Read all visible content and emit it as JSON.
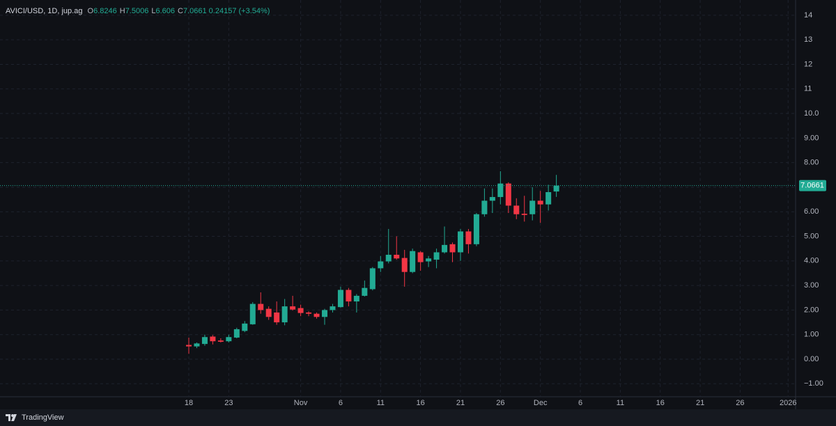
{
  "chart_data": {
    "type": "candlestick",
    "header": {
      "symbol": "AVICI/USD, 1D, jup.ag",
      "fields": [
        {
          "key": "O",
          "value": 6.8246
        },
        {
          "key": "H",
          "value": 7.5006
        },
        {
          "key": "L",
          "value": 6.606
        },
        {
          "key": "C",
          "value": 7.0661
        }
      ],
      "change": 0.24157,
      "change_pct": "(+3.54%)"
    },
    "categories": [
      "18",
      null,
      null,
      null,
      null,
      "23",
      null,
      null,
      null,
      null,
      null,
      null,
      null,
      null,
      "Nov",
      null,
      null,
      null,
      null,
      "6",
      null,
      null,
      null,
      null,
      "11",
      null,
      null,
      null,
      null,
      "16",
      null,
      null,
      null,
      null,
      "21",
      null,
      null,
      null,
      null,
      "26",
      null,
      null,
      null,
      null,
      "Dec",
      null,
      null,
      null,
      null,
      "6",
      null,
      null,
      null,
      null,
      "11",
      null,
      null,
      null,
      null,
      "16",
      null,
      null,
      null,
      null,
      "21",
      null,
      null,
      null,
      null,
      "26",
      null,
      null,
      null,
      null,
      null,
      "2026"
    ],
    "open": [
      0.58,
      0.52,
      0.62,
      0.92,
      0.76,
      0.73,
      0.88,
      1.15,
      1.42,
      2.25,
      2.05,
      1.9,
      1.5,
      2.15,
      2.08,
      1.9,
      1.85,
      1.72,
      2.0,
      2.12,
      2.82,
      2.35,
      2.58,
      2.85,
      3.7,
      3.98,
      4.25,
      4.12,
      3.55,
      4.35,
      3.98,
      4.05,
      4.35,
      4.68,
      4.35,
      5.2,
      4.68,
      5.9,
      6.45,
      6.6,
      7.15,
      6.25,
      5.92,
      5.9,
      6.45,
      6.3,
      6.8246,
      null,
      null,
      null,
      null,
      null,
      null,
      null,
      null,
      null,
      null,
      null,
      null,
      null,
      null,
      null,
      null,
      null,
      null,
      null,
      null,
      null,
      null,
      null,
      null,
      null,
      null,
      null,
      null,
      null
    ],
    "high": [
      0.88,
      0.68,
      1.0,
      0.98,
      0.85,
      1.0,
      1.28,
      1.55,
      2.32,
      2.72,
      2.15,
      2.35,
      2.45,
      2.58,
      2.22,
      1.95,
      1.9,
      2.05,
      2.25,
      2.95,
      2.9,
      2.65,
      3.2,
      3.75,
      4.2,
      5.3,
      5.0,
      4.45,
      4.5,
      4.4,
      4.2,
      4.5,
      5.4,
      4.75,
      5.3,
      5.3,
      5.95,
      6.95,
      6.95,
      7.65,
      7.2,
      6.55,
      6.65,
      7.0,
      6.85,
      7.1,
      7.5006,
      null,
      null,
      null,
      null,
      null,
      null,
      null,
      null,
      null,
      null,
      null,
      null,
      null,
      null,
      null,
      null,
      null,
      null,
      null,
      null,
      null,
      null,
      null,
      null,
      null,
      null,
      null,
      null,
      null
    ],
    "low": [
      0.22,
      0.45,
      0.55,
      0.6,
      0.68,
      0.68,
      0.85,
      1.1,
      1.4,
      1.85,
      1.6,
      1.4,
      1.38,
      1.98,
      1.75,
      1.75,
      1.65,
      1.4,
      1.9,
      2.1,
      2.15,
      1.9,
      2.55,
      2.8,
      3.55,
      3.9,
      4.05,
      2.95,
      3.5,
      3.6,
      3.75,
      3.7,
      4.3,
      3.95,
      4.0,
      4.3,
      4.6,
      5.8,
      5.95,
      6.3,
      5.95,
      5.7,
      5.6,
      5.65,
      5.55,
      6.05,
      6.606,
      null,
      null,
      null,
      null,
      null,
      null,
      null,
      null,
      null,
      null,
      null,
      null,
      null,
      null,
      null,
      null,
      null,
      null,
      null,
      null,
      null,
      null,
      null,
      null,
      null,
      null,
      null,
      null,
      null
    ],
    "close": [
      0.52,
      0.64,
      0.9,
      0.73,
      0.71,
      0.9,
      1.22,
      1.45,
      2.25,
      2.0,
      1.72,
      1.5,
      2.15,
      2.02,
      1.88,
      1.85,
      1.72,
      2.0,
      2.15,
      2.82,
      2.35,
      2.58,
      2.9,
      3.7,
      3.98,
      4.25,
      4.1,
      3.55,
      4.4,
      3.95,
      4.1,
      4.35,
      4.65,
      4.35,
      5.2,
      4.68,
      5.9,
      6.45,
      6.6,
      7.15,
      6.25,
      5.9,
      5.87,
      6.45,
      6.3,
      6.8,
      7.0661,
      null,
      null,
      null,
      null,
      null,
      null,
      null,
      null,
      null,
      null,
      null,
      null,
      null,
      null,
      null,
      null,
      null,
      null,
      null,
      null,
      null,
      null,
      null,
      null,
      null,
      null,
      null,
      null,
      null
    ],
    "up_color": "#22ab94",
    "down_color": "#f23645",
    "last_price": 7.0661,
    "ylim": [
      -1.53,
      14.62
    ],
    "yticks": [
      {
        "value": -1,
        "label": "−1.00"
      },
      {
        "value": 0,
        "label": "0.00"
      },
      {
        "value": 1,
        "label": "1.00"
      },
      {
        "value": 2,
        "label": "2.00"
      },
      {
        "value": 3,
        "label": "3.00"
      },
      {
        "value": 4,
        "label": "4.00"
      },
      {
        "value": 5,
        "label": "5.00"
      },
      {
        "value": 6,
        "label": "6.00"
      },
      {
        "value": 7,
        "label": "7.00"
      },
      {
        "value": 8,
        "label": "8.00"
      },
      {
        "value": 9,
        "label": "9.00"
      },
      {
        "value": 10,
        "label": "10.0"
      },
      11,
      12,
      13,
      14
    ],
    "grid": true,
    "footer": "TradingView"
  }
}
